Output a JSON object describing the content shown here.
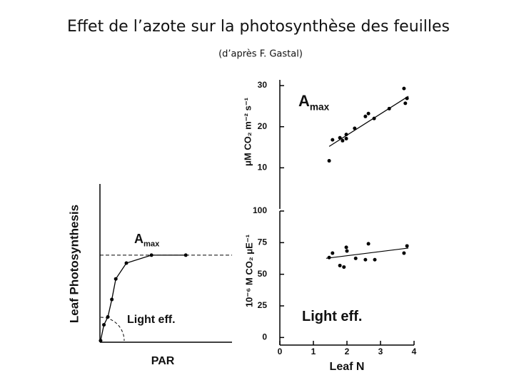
{
  "title": "Effet de l’azote sur la photosynthèse des feuilles",
  "subtitle": "(d’après F. Gastal)",
  "chart_data": [
    {
      "type": "line",
      "xlabel": "PAR",
      "ylabel": "Leaf Photosynthesis",
      "x": [
        0.5,
        3,
        6,
        9,
        12,
        20,
        39,
        65
      ],
      "values": [
        1,
        11,
        16,
        27,
        40,
        50,
        55,
        55
      ],
      "xlim": [
        0,
        100
      ],
      "ylim": [
        0,
        100
      ],
      "reference_line": 55,
      "color": "#000000",
      "annotations": [
        {
          "text": "A",
          "subscript": "max"
        },
        {
          "text": "Light eff."
        }
      ]
    },
    {
      "type": "scatter",
      "ylabel": "μM CO₂ m⁻² s⁻¹",
      "x": [
        1.47,
        1.57,
        1.79,
        1.87,
        1.98,
        1.98,
        2.23,
        2.55,
        2.64,
        2.81,
        3.26,
        3.7,
        3.74,
        3.79
      ],
      "values": [
        11.7,
        16.8,
        17.3,
        16.6,
        18.1,
        17.1,
        19.6,
        22.5,
        23.2,
        22.0,
        24.4,
        29.3,
        25.7,
        26.9
      ],
      "fit": {
        "x": [
          1.47,
          3.83
        ],
        "values": [
          15.2,
          27.4
        ]
      },
      "xlim": [
        0,
        4
      ],
      "ylim": [
        0,
        31.4
      ],
      "yticks": [
        10,
        20,
        30
      ],
      "color": "#000000",
      "annotations": [
        {
          "text": "A",
          "subscript": "max"
        }
      ]
    },
    {
      "type": "scatter",
      "xlabel": "Leaf N",
      "ylabel": "10⁻⁶ M CO₂ μE⁻¹",
      "x": [
        1.47,
        1.57,
        1.79,
        1.91,
        1.98,
        2.0,
        2.26,
        2.55,
        2.64,
        2.83,
        3.7,
        3.79
      ],
      "values": [
        63.2,
        66.7,
        56.9,
        55.7,
        71.3,
        68.4,
        62.6,
        61.5,
        74.1,
        61.5,
        66.7,
        72.4
      ],
      "fit": {
        "x": [
          1.38,
          3.83
        ],
        "values": [
          62.6,
          70.7
        ]
      },
      "xlim": [
        0,
        4
      ],
      "ylim": [
        -6,
        100
      ],
      "yticks": [
        0,
        25,
        50,
        75,
        100
      ],
      "xticks": [
        0,
        1,
        2,
        3,
        4
      ],
      "color": "#000000",
      "annotations": [
        {
          "text": "Light eff."
        }
      ]
    }
  ]
}
